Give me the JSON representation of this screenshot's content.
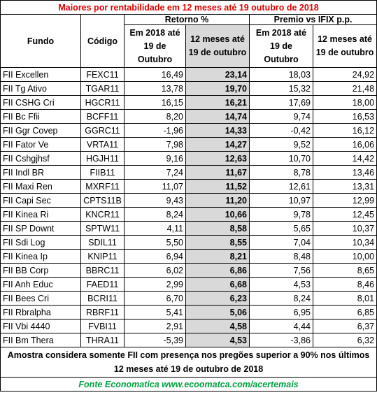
{
  "title": "Maiores por rentabilidade em 12 meses até 19 outubro de 2018",
  "header": {
    "fundo": "Fundo",
    "codigo": "Código",
    "retorno": "Retorno %",
    "premio": "Premio vs IFIX p.p.",
    "sub": [
      "Em 2018 até 19 de Outubro",
      "12 meses até 19 de outubro",
      "Em 2018 até 19 de Outubro",
      "12 meses até 19 de outubro"
    ]
  },
  "table": {
    "rows": [
      [
        "FII Excellen",
        "FEXC11",
        "16,49",
        "23,14",
        "18,03",
        "24,92"
      ],
      [
        "FII Tg Ativo",
        "TGAR11",
        "13,78",
        "19,70",
        "15,32",
        "21,48"
      ],
      [
        "FII CSHG Cri",
        "HGCR11",
        "16,15",
        "16,21",
        "17,69",
        "18,00"
      ],
      [
        "FII Bc Ffii",
        "BCFF11",
        "8,20",
        "14,74",
        "9,74",
        "16,53"
      ],
      [
        "FII Ggr Covep",
        "GGRC11",
        "-1,96",
        "14,33",
        "-0,42",
        "16,12"
      ],
      [
        "FII Fator Ve",
        "VRTA11",
        "7,98",
        "14,27",
        "9,52",
        "16,06"
      ],
      [
        "FII Cshgjhsf",
        "HGJH11",
        "9,16",
        "12,63",
        "10,70",
        "14,42"
      ],
      [
        "FII Indl BR",
        "FIIB11",
        "7,24",
        "11,67",
        "8,78",
        "13,46"
      ],
      [
        "FII Maxi Ren",
        "MXRF11",
        "11,07",
        "11,52",
        "12,61",
        "13,31"
      ],
      [
        "FII Capi Sec",
        "CPTS11B",
        "9,43",
        "11,20",
        "10,97",
        "12,99"
      ],
      [
        "FII Kinea Ri",
        "KNCR11",
        "8,24",
        "10,66",
        "9,78",
        "12,45"
      ],
      [
        "FII SP Downt",
        "SPTW11",
        "4,11",
        "8,58",
        "5,65",
        "10,37"
      ],
      [
        "FII Sdi Log",
        "SDIL11",
        "5,50",
        "8,55",
        "7,04",
        "10,34"
      ],
      [
        "FII Kinea Ip",
        "KNIP11",
        "6,94",
        "8,21",
        "8,48",
        "10,00"
      ],
      [
        "FII BB Corp",
        "BBRC11",
        "6,02",
        "6,86",
        "7,56",
        "8,65"
      ],
      [
        "FII Anh Educ",
        "FAED11",
        "2,99",
        "6,68",
        "4,53",
        "8,46"
      ],
      [
        "FII Bees Cri",
        "BCRI11",
        "6,70",
        "6,23",
        "8,24",
        "8,01"
      ],
      [
        "FII Rbralpha",
        "RBRF11",
        "5,41",
        "5,06",
        "6,95",
        "6,85"
      ],
      [
        "FII Vbi 4440",
        "FVBI11",
        "2,91",
        "4,58",
        "4,44",
        "6,37"
      ],
      [
        "FII Bm Thera",
        "THRA11",
        "-5,39",
        "4,53",
        "-3,86",
        "6,32"
      ]
    ]
  },
  "note": "Amostra considera somente FII com presença nos pregões superior a 90% nos últimos 12 meses até 19 de outubro de 2018",
  "source": "Fonte Economatica www.ecoomatca.com/acertemais"
}
